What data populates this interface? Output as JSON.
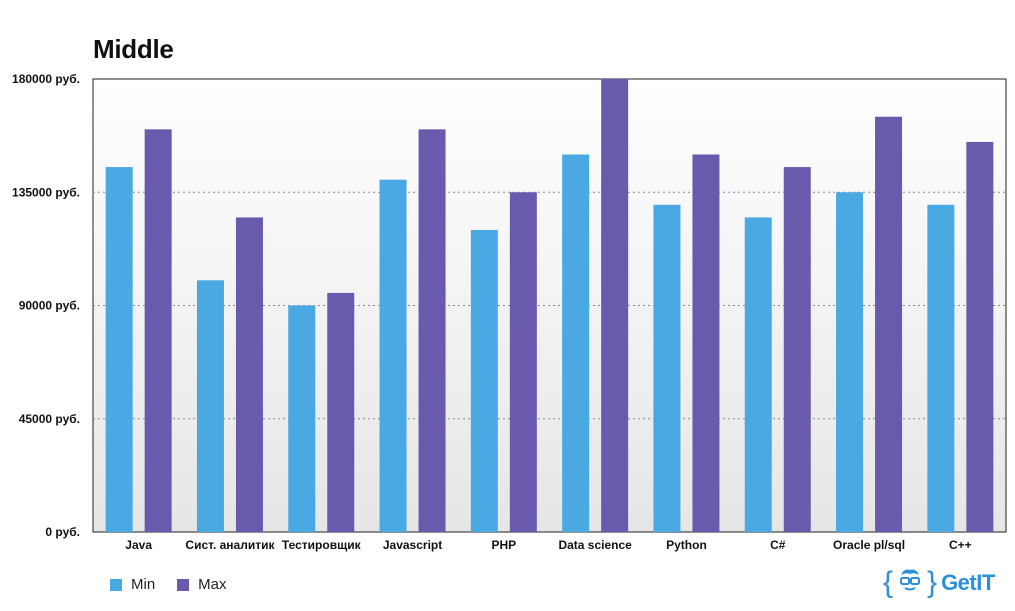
{
  "title": "Middle",
  "chart_data": {
    "type": "bar",
    "title": "Middle",
    "categories": [
      "Java",
      "Сист. аналитик",
      "Тестировщик",
      "Javascript",
      "PHP",
      "Data science",
      "Python",
      "C#",
      "Oracle pl/sql",
      "C++"
    ],
    "series": [
      {
        "name": "Min",
        "color": "#4aa8e2",
        "values": [
          145000,
          100000,
          90000,
          140000,
          120000,
          150000,
          130000,
          125000,
          135000,
          130000
        ]
      },
      {
        "name": "Max",
        "color": "#6a5aad",
        "values": [
          160000,
          125000,
          95000,
          160000,
          135000,
          180000,
          150000,
          145000,
          165000,
          155000
        ]
      }
    ],
    "yticks": [
      "0 руб.",
      "45000 руб.",
      "90000 руб.",
      "135000 руб.",
      "180000 руб."
    ],
    "ylim": [
      0,
      180000
    ],
    "grid": true,
    "legend_position": "bottom-left"
  },
  "logo": {
    "brand": "GetIT",
    "color": "#2c8fd8"
  }
}
